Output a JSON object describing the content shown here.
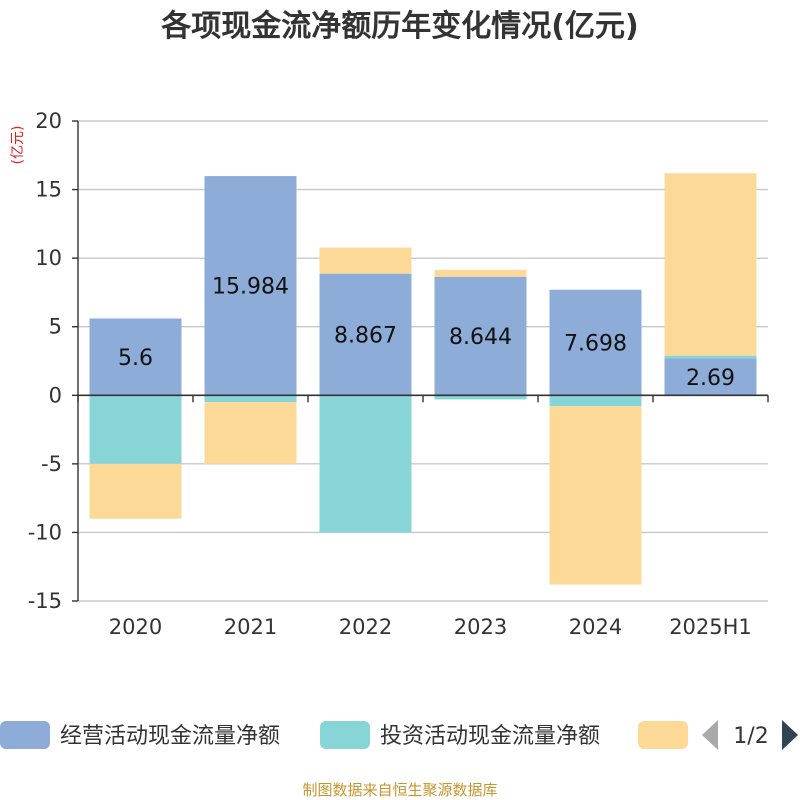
{
  "chart_data": {
    "type": "bar",
    "stacked": true,
    "title": "各项现金流净额历年变化情况(亿元)",
    "unit_label": "(亿元)",
    "categories": [
      "2020",
      "2021",
      "2022",
      "2023",
      "2024",
      "2025H1"
    ],
    "ylim": [
      -15,
      20
    ],
    "yticks": [
      20,
      15,
      10,
      5,
      0,
      -5,
      -10,
      -15
    ],
    "grid": true,
    "series": [
      {
        "name": "经营活动现金流量净额",
        "color": "#8eacd8",
        "values": [
          5.6,
          15.984,
          8.867,
          8.644,
          7.698,
          2.69
        ]
      },
      {
        "name": "投资活动现金流量净额",
        "color": "#88d5d7",
        "values": [
          -5.0,
          -0.5,
          -10.0,
          -0.3,
          -0.8,
          0.2
        ]
      },
      {
        "name": "",
        "color": "#fdd998",
        "values": [
          -4.0,
          -4.5,
          1.9,
          0.5,
          -13.0,
          13.3
        ]
      }
    ],
    "data_labels": [
      "5.6",
      "15.984",
      "8.867",
      "8.644",
      "7.698",
      "2.69"
    ],
    "legend": {
      "position": "bottom",
      "page": "1/2"
    },
    "source": "制图数据来自恒生聚源数据库"
  }
}
